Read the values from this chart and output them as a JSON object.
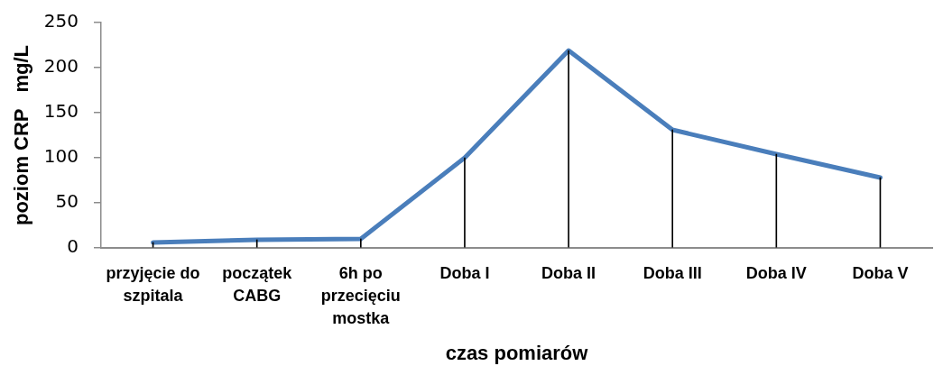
{
  "chart_data": {
    "type": "line",
    "xlabel": "czas pomiarów",
    "ylabel": "poziom CRP   mg/L",
    "categories": [
      "przyjęcie do szpitala",
      "początek CABG",
      "6h po przecięciu mostka",
      "Doba I",
      "Doba II",
      "Doba III",
      "Doba IV",
      "Doba V"
    ],
    "series": [
      {
        "color": "#4a7ebb",
        "values": [
          6,
          9,
          10,
          100,
          219,
          131,
          104,
          78
        ]
      },
      {
        "type": "bar",
        "color": "#000000",
        "values": [
          6,
          9,
          10,
          100,
          219,
          131,
          104,
          78
        ]
      }
    ],
    "ylim": [
      0,
      250
    ],
    "yticks": [
      0,
      50,
      100,
      150,
      200,
      250
    ],
    "grid": false,
    "legend": false,
    "marker": "none",
    "line_style": "solid"
  }
}
